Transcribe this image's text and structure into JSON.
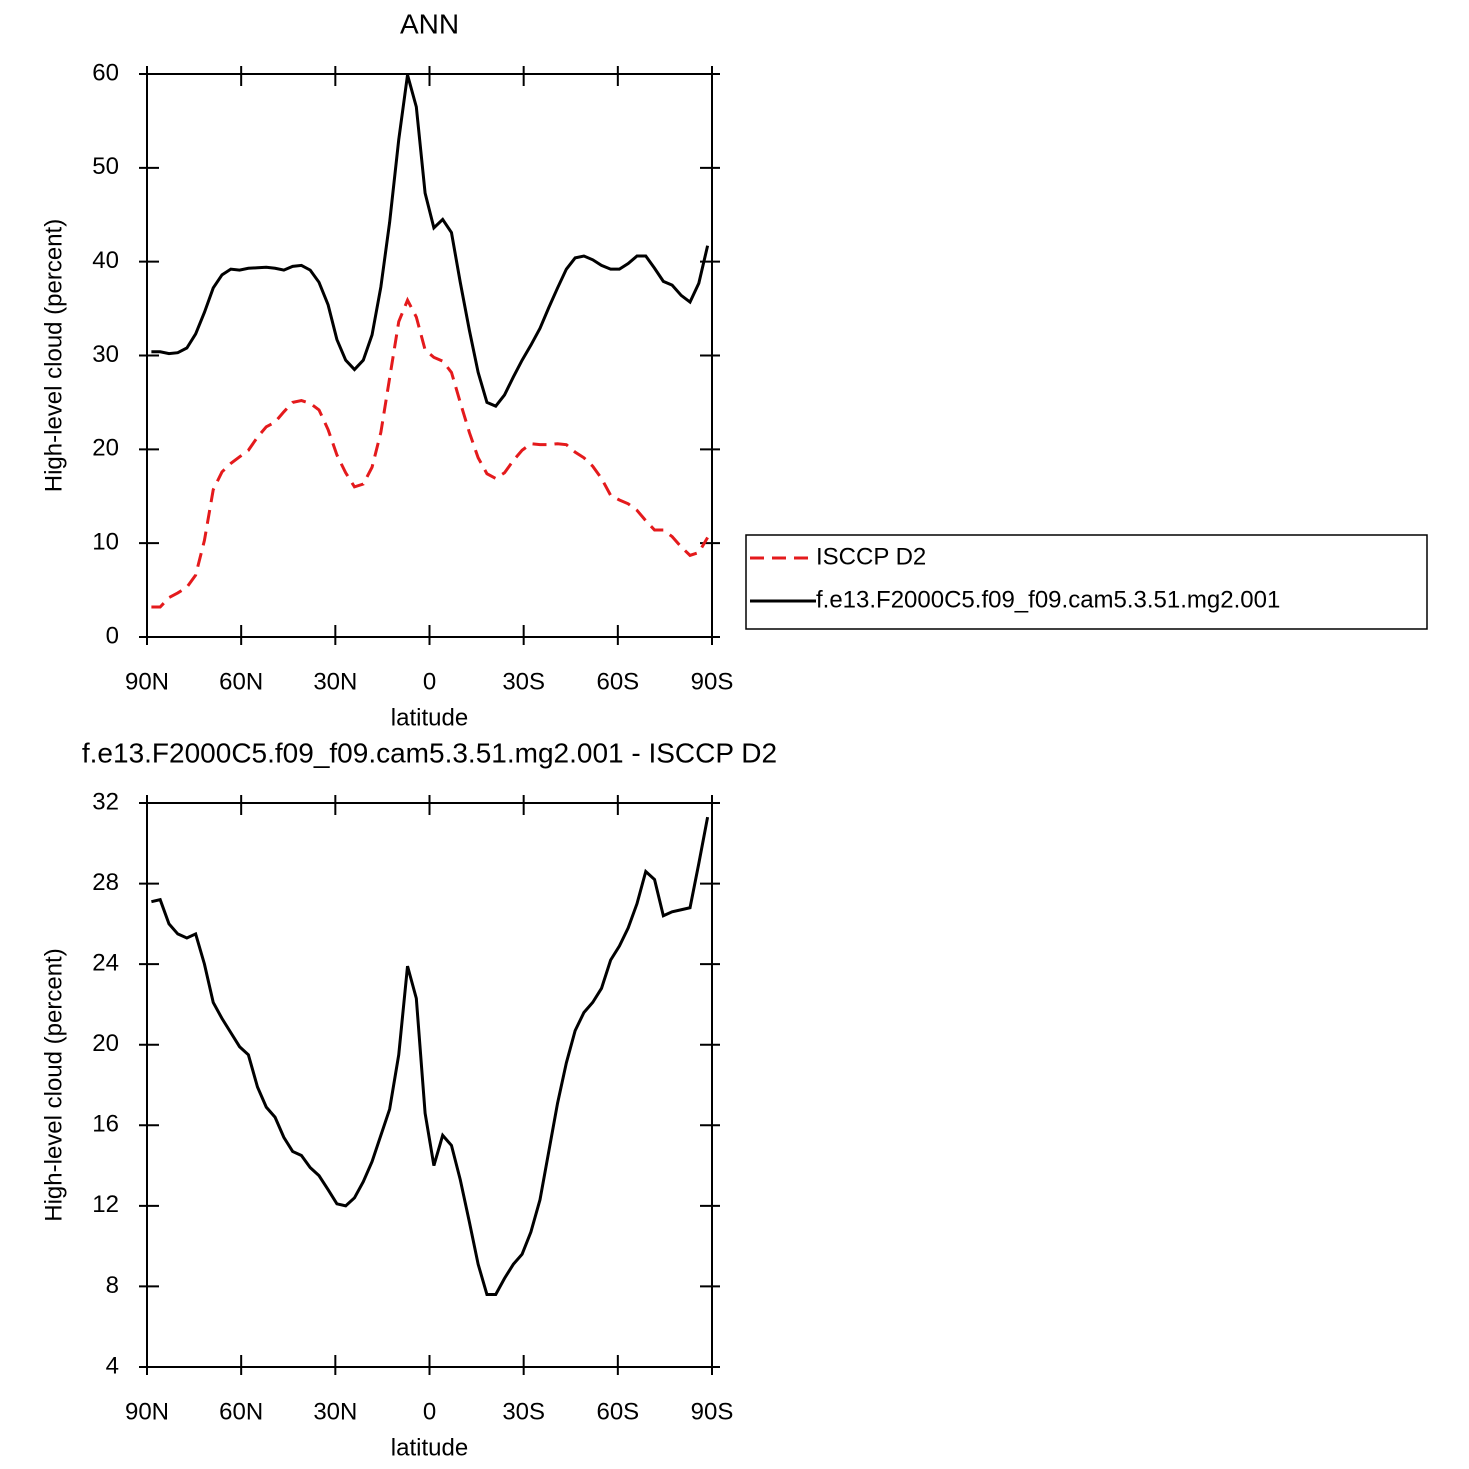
{
  "chart_data": [
    {
      "type": "line",
      "title": "ANN",
      "xlabel": "latitude",
      "ylabel": "High-level cloud (percent)",
      "x": [
        88.6,
        85.8,
        83.0,
        80.2,
        77.3,
        74.5,
        71.7,
        68.9,
        66.1,
        63.3,
        60.5,
        57.7,
        54.8,
        52.0,
        49.2,
        46.4,
        43.6,
        40.8,
        38.0,
        35.2,
        32.3,
        29.5,
        26.7,
        23.9,
        21.1,
        18.3,
        15.5,
        12.7,
        9.8,
        7.0,
        4.2,
        1.4,
        -1.4,
        -4.2,
        -7.0,
        -9.8,
        -12.7,
        -15.5,
        -18.3,
        -21.1,
        -23.9,
        -26.7,
        -29.5,
        -32.3,
        -35.2,
        -38.0,
        -40.8,
        -43.6,
        -46.4,
        -49.2,
        -52.0,
        -54.8,
        -57.7,
        -60.5,
        -63.3,
        -66.1,
        -68.9,
        -71.7,
        -74.5,
        -77.3,
        -80.2,
        -83.0,
        -85.8,
        -88.6
      ],
      "series": [
        {
          "name": "ISCCP D2",
          "color": "#e41a1c",
          "dashed": true,
          "values": [
            3.2,
            3.2,
            4.2,
            4.7,
            5.3,
            6.6,
            10.3,
            15.7,
            17.6,
            18.5,
            19.2,
            19.9,
            21.3,
            22.4,
            22.9,
            24.0,
            25.0,
            25.2,
            24.9,
            24.2,
            22.1,
            19.4,
            17.5,
            16.0,
            16.3,
            18.1,
            21.8,
            27.6,
            33.6,
            35.9,
            34.1,
            30.6,
            29.8,
            29.4,
            28.2,
            25.0,
            21.8,
            19.1,
            17.4,
            16.9,
            17.5,
            18.8,
            19.9,
            20.6,
            20.5,
            20.5,
            20.6,
            20.5,
            19.7,
            19.1,
            18.2,
            16.9,
            15.1,
            14.6,
            14.2,
            13.5,
            12.4,
            11.4,
            11.4,
            10.7,
            9.6,
            8.7,
            9.0,
            10.6
          ]
        },
        {
          "name": "f.e13.F2000C5.f09_f09.cam5.3.51.mg2.001",
          "color": "#000000",
          "dashed": false,
          "values": [
            30.4,
            30.4,
            30.2,
            30.3,
            30.8,
            32.3,
            34.6,
            37.2,
            38.6,
            39.2,
            39.1,
            39.3,
            39.35,
            39.4,
            39.3,
            39.1,
            39.5,
            39.6,
            39.1,
            37.8,
            35.4,
            31.7,
            29.5,
            28.5,
            29.5,
            32.2,
            37.3,
            44.2,
            53.0,
            59.9,
            56.5,
            47.3,
            43.6,
            44.5,
            43.1,
            37.8,
            32.7,
            28.2,
            25.0,
            24.6,
            25.8,
            27.7,
            29.5,
            31.1,
            32.9,
            35.1,
            37.2,
            39.2,
            40.4,
            40.6,
            40.2,
            39.6,
            39.2,
            39.2,
            39.8,
            40.6,
            40.6,
            39.3,
            37.9,
            37.5,
            36.4,
            35.7,
            37.7,
            41.7
          ]
        }
      ],
      "xlim": [
        90,
        -90
      ],
      "xticks": [
        {
          "value": 90,
          "label": "90N"
        },
        {
          "value": 60,
          "label": "60N"
        },
        {
          "value": 30,
          "label": "30N"
        },
        0,
        {
          "value": -30,
          "label": "30S"
        },
        {
          "value": -60,
          "label": "60S"
        },
        {
          "value": -90,
          "label": "90S"
        }
      ],
      "ylim": [
        0,
        60
      ],
      "yticks": [
        0,
        10,
        20,
        30,
        40,
        50,
        60
      ],
      "legend": "right"
    },
    {
      "type": "line",
      "title": "f.e13.F2000C5.f09_f09.cam5.3.51.mg2.001 - ISCCP D2",
      "xlabel": "latitude",
      "ylabel": "High-level cloud (percent)",
      "x": [
        88.6,
        85.8,
        83.0,
        80.2,
        77.3,
        74.5,
        71.7,
        68.9,
        66.1,
        63.3,
        60.5,
        57.7,
        54.8,
        52.0,
        49.2,
        46.4,
        43.6,
        40.8,
        38.0,
        35.2,
        32.3,
        29.5,
        26.7,
        23.9,
        21.1,
        18.3,
        15.5,
        12.7,
        9.8,
        7.0,
        4.2,
        1.4,
        -1.4,
        -4.2,
        -7.0,
        -9.8,
        -12.7,
        -15.5,
        -18.3,
        -21.1,
        -23.9,
        -26.7,
        -29.5,
        -32.3,
        -35.2,
        -38.0,
        -40.8,
        -43.6,
        -46.4,
        -49.2,
        -52.0,
        -54.8,
        -57.7,
        -60.5,
        -63.3,
        -66.1,
        -68.9,
        -71.7,
        -74.5,
        -77.3,
        -80.2,
        -83.0,
        -85.8,
        -88.6
      ],
      "series": [
        {
          "color": "#000000",
          "dashed": false,
          "values": [
            27.1,
            27.2,
            26.0,
            25.5,
            25.3,
            25.5,
            24.0,
            22.1,
            21.3,
            20.6,
            19.9,
            19.5,
            17.9,
            16.9,
            16.4,
            15.4,
            14.7,
            14.5,
            13.9,
            13.5,
            12.8,
            12.1,
            12.0,
            12.4,
            13.2,
            14.2,
            15.5,
            16.8,
            19.5,
            23.9,
            22.3,
            16.6,
            14.0,
            15.5,
            15.0,
            13.3,
            11.2,
            9.1,
            7.6,
            7.6,
            8.4,
            9.1,
            9.6,
            10.7,
            12.3,
            14.7,
            17.1,
            19.1,
            20.7,
            21.6,
            22.1,
            22.8,
            24.2,
            24.9,
            25.8,
            27.0,
            28.6,
            28.2,
            26.4,
            26.6,
            26.7,
            26.8,
            29.0,
            31.3
          ]
        }
      ],
      "xlim": [
        90,
        -90
      ],
      "xticks": [
        {
          "value": 90,
          "label": "90N"
        },
        {
          "value": 60,
          "label": "60N"
        },
        {
          "value": 30,
          "label": "30N"
        },
        0,
        {
          "value": -30,
          "label": "30S"
        },
        {
          "value": -60,
          "label": "60S"
        },
        {
          "value": -90,
          "label": "90S"
        }
      ],
      "ylim": [
        4,
        32
      ],
      "yticks": [
        4,
        8,
        12,
        16,
        20,
        24,
        28,
        32
      ]
    }
  ]
}
